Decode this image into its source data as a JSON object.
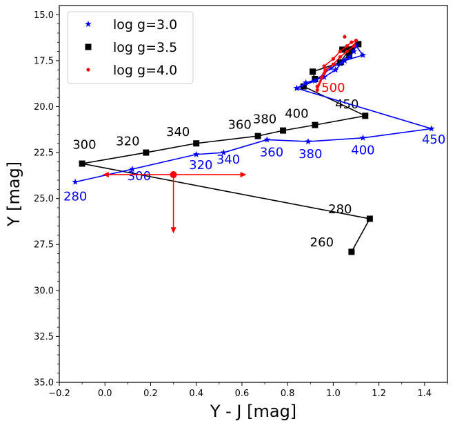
{
  "chart_data": {
    "type": "line",
    "xlabel": "Y - J  [mag]",
    "ylabel": "Y [mag]",
    "xlim": [
      -0.2,
      1.5
    ],
    "ylim": [
      35.0,
      14.5
    ],
    "y_inverted": true,
    "x_ticks": [
      -0.2,
      0.0,
      0.2,
      0.4,
      0.6,
      0.8,
      1.0,
      1.2,
      1.4
    ],
    "x_tick_labels": [
      "−0.2",
      "0.0",
      "0.2",
      "0.4",
      "0.6",
      "0.8",
      "1.0",
      "1.2",
      "1.4"
    ],
    "y_ticks": [
      15.0,
      17.5,
      20.0,
      22.5,
      25.0,
      27.5,
      30.0,
      32.5,
      35.0
    ],
    "y_tick_labels": [
      "15.0",
      "17.5",
      "20.0",
      "22.5",
      "25.0",
      "27.5",
      "30.0",
      "32.5",
      "35.0"
    ],
    "grid": false,
    "legend_placement": "top-left",
    "series": [
      {
        "name": "log g=3.0",
        "color": "#0000ff",
        "marker": "star",
        "points": [
          [
            -0.13,
            24.1
          ],
          [
            0.12,
            23.4
          ],
          [
            0.4,
            22.6
          ],
          [
            0.52,
            22.5
          ],
          [
            0.71,
            21.8
          ],
          [
            0.89,
            21.9
          ],
          [
            1.13,
            21.7
          ],
          [
            1.43,
            21.2
          ],
          [
            0.84,
            19.0
          ],
          [
            0.88,
            18.7
          ],
          [
            0.96,
            18.4
          ],
          [
            1.01,
            18.0
          ],
          [
            1.04,
            17.6
          ],
          [
            1.07,
            17.3
          ],
          [
            1.09,
            17.0
          ],
          [
            1.1,
            16.7
          ],
          [
            1.13,
            17.2
          ],
          [
            1.05,
            17.5
          ],
          [
            0.99,
            17.9
          ],
          [
            0.92,
            18.6
          ],
          [
            0.84,
            19.0
          ]
        ],
        "labels": [
          {
            "text": "280",
            "pt": 0,
            "dx": 0,
            "dy": 1.0
          },
          {
            "text": "300",
            "pt": 1,
            "dx": 0.03,
            "dy": 0.6
          },
          {
            "text": "320",
            "pt": 2,
            "dx": 0.02,
            "dy": 0.8
          },
          {
            "text": "340",
            "pt": 3,
            "dx": 0.02,
            "dy": 0.6
          },
          {
            "text": "360",
            "pt": 4,
            "dx": 0.02,
            "dy": 0.9
          },
          {
            "text": "380",
            "pt": 5,
            "dx": 0.01,
            "dy": 0.9
          },
          {
            "text": "400",
            "pt": 6,
            "dx": 0.0,
            "dy": 0.9
          },
          {
            "text": "450",
            "pt": 7,
            "dx": 0.01,
            "dy": 0.8
          }
        ]
      },
      {
        "name": "log g=3.5",
        "color": "#000000",
        "marker": "square",
        "points": [
          [
            1.08,
            27.9
          ],
          [
            1.16,
            26.1
          ],
          [
            -0.1,
            23.1
          ],
          [
            0.18,
            22.5
          ],
          [
            0.4,
            22.0
          ],
          [
            0.67,
            21.6
          ],
          [
            0.78,
            21.3
          ],
          [
            0.92,
            21.0
          ],
          [
            1.14,
            20.5
          ],
          [
            0.87,
            18.9
          ],
          [
            0.92,
            18.5
          ],
          [
            0.91,
            18.1
          ],
          [
            1.03,
            17.6
          ],
          [
            1.07,
            17.2
          ],
          [
            1.08,
            16.9
          ],
          [
            1.04,
            16.9
          ],
          [
            1.11,
            16.6
          ],
          [
            1.07,
            16.9
          ],
          [
            1.03,
            17.6
          ],
          [
            0.91,
            18.1
          ]
        ],
        "labels": [
          {
            "text": "260",
            "pt": 0,
            "dx": -0.13,
            "dy": -0.3
          },
          {
            "text": "280",
            "pt": 1,
            "dx": -0.13,
            "dy": -0.3
          },
          {
            "text": "300",
            "pt": 2,
            "dx": 0.01,
            "dy": -0.8
          },
          {
            "text": "320",
            "pt": 3,
            "dx": -0.08,
            "dy": -0.4
          },
          {
            "text": "340",
            "pt": 4,
            "dx": -0.08,
            "dy": -0.4
          },
          {
            "text": "360",
            "pt": 5,
            "dx": -0.08,
            "dy": -0.4
          },
          {
            "text": "380",
            "pt": 6,
            "dx": -0.08,
            "dy": -0.4
          },
          {
            "text": "400",
            "pt": 7,
            "dx": -0.08,
            "dy": -0.4
          },
          {
            "text": "450",
            "pt": 8,
            "dx": -0.08,
            "dy": -0.4
          }
        ]
      },
      {
        "name": "log g=4.0",
        "color": "#ff0000",
        "marker": "dot",
        "points": [
          [
            0.93,
            19.1
          ],
          [
            0.96,
            18.2
          ],
          [
            0.96,
            17.8
          ],
          [
            1.0,
            17.4
          ],
          [
            1.03,
            17.0
          ],
          [
            1.06,
            16.7
          ],
          [
            1.08,
            16.5
          ],
          [
            1.1,
            16.4
          ],
          [
            1.09,
            16.7
          ],
          [
            1.06,
            17.0
          ],
          [
            1.03,
            17.3
          ],
          [
            1.0,
            17.7
          ],
          [
            0.97,
            18.0
          ],
          [
            0.95,
            18.4
          ],
          [
            0.93,
            18.9
          ]
        ],
        "extra_points": [
          [
            1.05,
            16.2
          ]
        ],
        "labels": [
          {
            "text": "500",
            "pt": 0,
            "dx": 0.07,
            "dy": 0.1
          }
        ]
      }
    ],
    "error_bar": {
      "color": "#ff0000",
      "x": 0.3,
      "y": 23.7,
      "x_left": -0.01,
      "x_right": 0.62,
      "y_lower_limit_to": 26.9,
      "arrows": [
        "left",
        "right",
        "down"
      ]
    }
  }
}
